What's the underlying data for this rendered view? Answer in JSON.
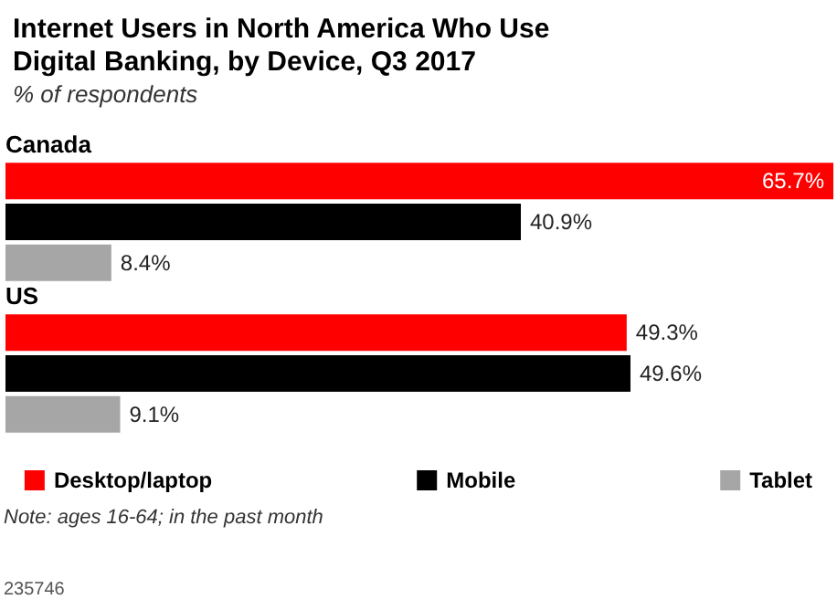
{
  "chart_data": {
    "type": "bar",
    "orientation": "horizontal",
    "title": "Internet Users in North America Who Use Digital Banking, by Device, Q3 2017",
    "subtitle": "% of respondents",
    "categories": [
      "Canada",
      "US"
    ],
    "series": [
      {
        "name": "Desktop/laptop",
        "color": "#ff0000",
        "values": [
          65.7,
          49.3
        ],
        "value_labels": [
          "65.7%",
          "49.3%"
        ]
      },
      {
        "name": "Mobile",
        "color": "#000000",
        "values": [
          40.9,
          49.6
        ],
        "value_labels": [
          "40.9%",
          "49.6%"
        ]
      },
      {
        "name": "Tablet",
        "color": "#a6a6a6",
        "values": [
          8.4,
          9.1
        ],
        "value_labels": [
          "8.4%",
          "9.1%"
        ]
      }
    ],
    "legend": "bottom",
    "tick_labels": "y",
    "annotations": [
      "Note: ages 16-64; in the past month",
      "235746"
    ]
  }
}
